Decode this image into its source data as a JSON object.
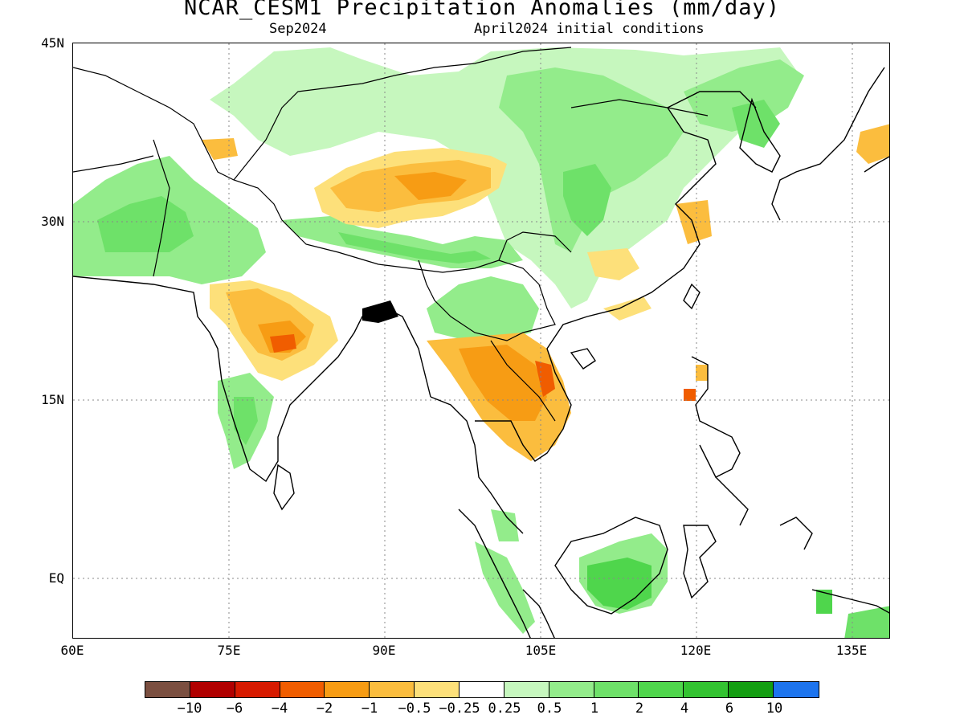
{
  "title": "NCAR_CESM1 Precipitation Anomalies (mm/day)",
  "subtitle_left": "Sep2024",
  "subtitle_right": "April2024 initial conditions",
  "latitude_labels": [
    "45N",
    "30N",
    "15N",
    "EQ"
  ],
  "longitude_labels": [
    "60E",
    "75E",
    "90E",
    "105E",
    "120E",
    "135E"
  ],
  "colorbar": {
    "colors": [
      "#7b4f40",
      "#b10000",
      "#d71a00",
      "#f05d00",
      "#f79c14",
      "#fbbd3e",
      "#fde07a",
      "#ffffff",
      "#c6f7be",
      "#93ec8b",
      "#6ee169",
      "#4fd64c",
      "#33c331",
      "#149e12",
      "#1d74ee"
    ],
    "labels": [
      "−10",
      "−6",
      "−4",
      "−2",
      "−1",
      "−0.5",
      "−0.25",
      "0.25",
      "0.5",
      "1",
      "2",
      "4",
      "6",
      "10"
    ]
  },
  "map_data": {
    "region": "South and East Asia, 60E–140E, 5S–45N",
    "variable": "precipitation anomaly",
    "units": "mm/day",
    "grid": "dotted graticule every 15 degrees"
  }
}
